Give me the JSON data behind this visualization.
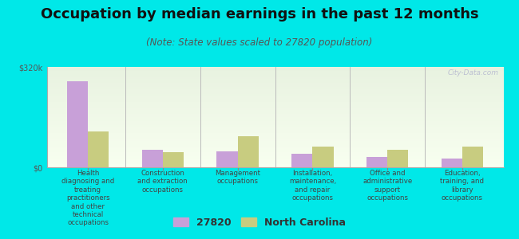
{
  "title": "Occupation by median earnings in the past 12 months",
  "subtitle": "(Note: State values scaled to 27820 population)",
  "categories": [
    "Health\ndiagnosing and\ntreating\npractitioners\nand other\ntechnical\noccupations",
    "Construction\nand extraction\noccupations",
    "Management\noccupations",
    "Installation,\nmaintenance,\nand repair\noccupations",
    "Office and\nadministrative\nsupport\noccupations",
    "Education,\ntraining, and\nlibrary\noccupations"
  ],
  "values_27820": [
    275000,
    55000,
    50000,
    42000,
    32000,
    28000
  ],
  "values_nc": [
    115000,
    48000,
    100000,
    65000,
    55000,
    65000
  ],
  "bar_color_27820": "#c8a0d8",
  "bar_color_nc": "#c8cc80",
  "background_color": "#00e8e8",
  "plot_bg_color_top": "#e8f2e0",
  "plot_bg_color_bottom": "#f8fff0",
  "ylim": [
    0,
    320000
  ],
  "ytick_labels": [
    "$0",
    "$320k"
  ],
  "legend_label_27820": "27820",
  "legend_label_nc": "North Carolina",
  "watermark": "City-Data.com",
  "title_fontsize": 13,
  "subtitle_fontsize": 8.5,
  "axis_label_fontsize": 7,
  "legend_fontsize": 9
}
